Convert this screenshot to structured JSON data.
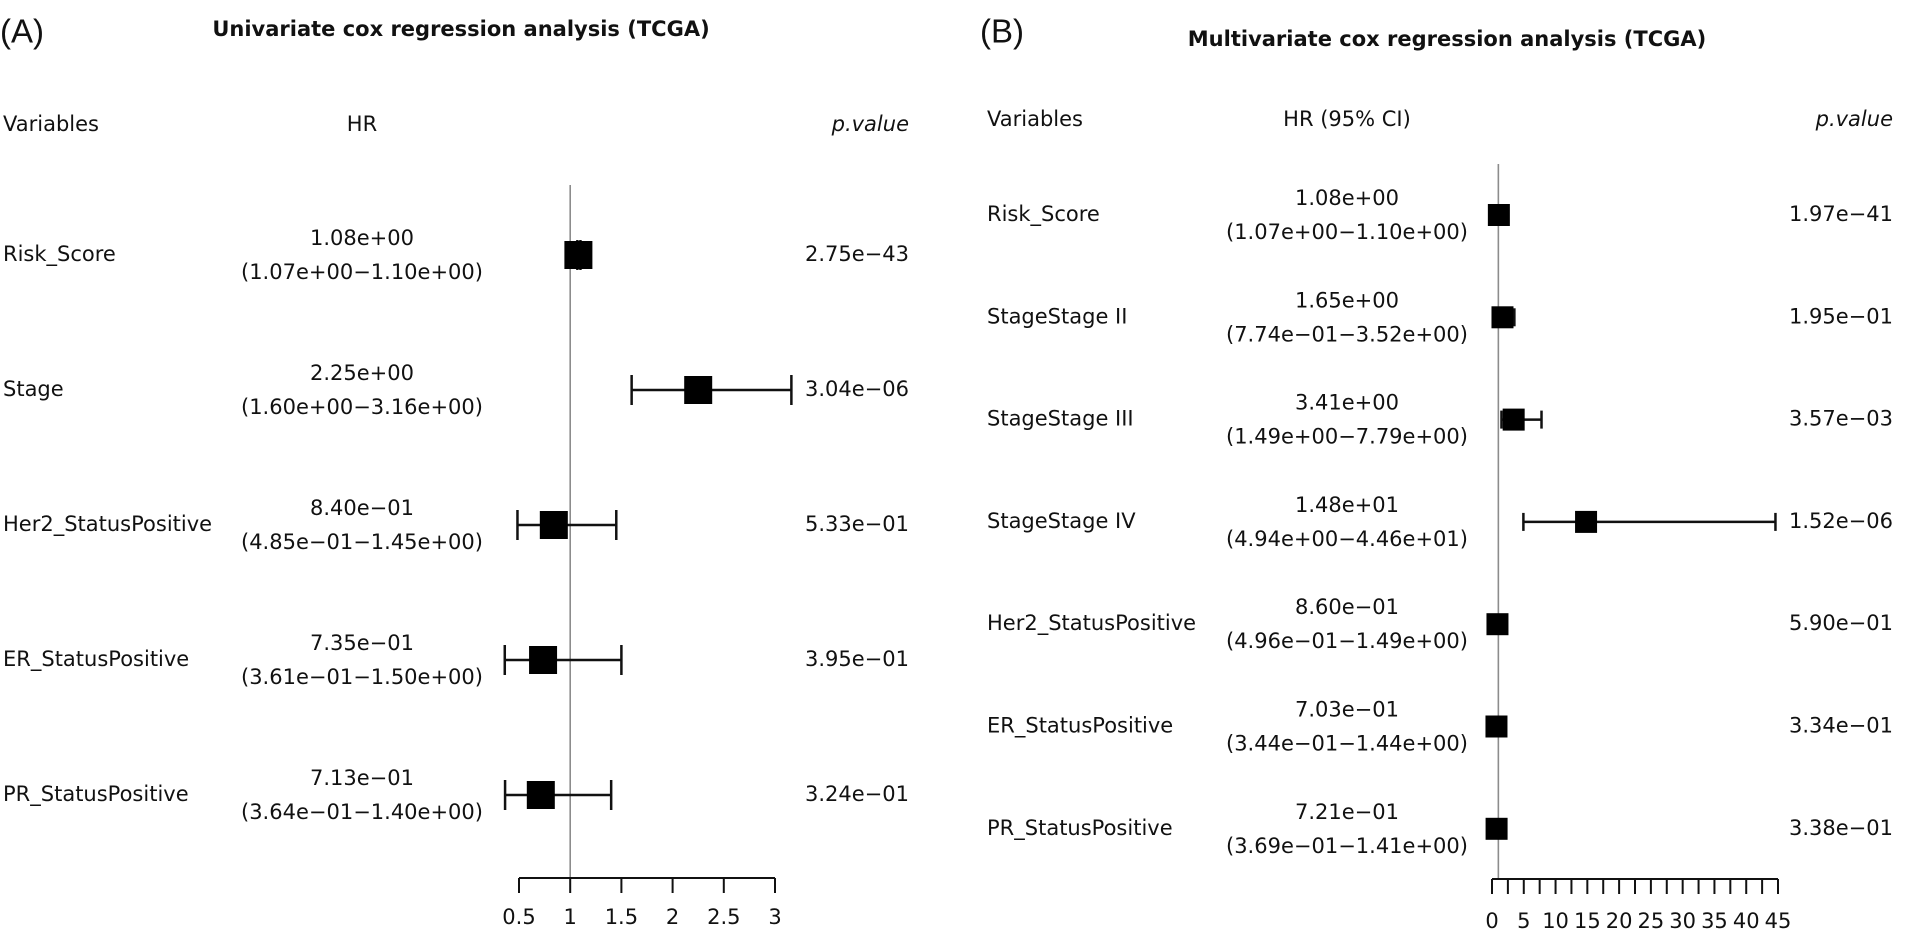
{
  "chart_data": [
    {
      "type": "forest",
      "panel_label": "(A)",
      "title": "Univariate cox regression analysis (TCGA)",
      "headers": {
        "variables": "Variables",
        "hr": "HR",
        "pvalue": "p.value"
      },
      "xlim": [
        0.5,
        3
      ],
      "xticks": [
        0.5,
        1,
        1.5,
        2,
        2.5,
        3
      ],
      "xtick_labels": [
        "0.5",
        "1",
        "1.5",
        "2",
        "2.5",
        "3"
      ],
      "minor_step": 0.5,
      "reference": 1,
      "rows": [
        {
          "variable": "Risk_Score",
          "hr": 1.08,
          "lo": 1.07,
          "hi": 1.1,
          "hr_text": "1.08e+00",
          "ci_text": "(1.07e+00−1.10e+00)",
          "p_text": "2.75e−43"
        },
        {
          "variable": "Stage",
          "hr": 2.25,
          "lo": 1.6,
          "hi": 3.16,
          "hr_text": "2.25e+00",
          "ci_text": "(1.60e+00−3.16e+00)",
          "p_text": "3.04e−06"
        },
        {
          "variable": "Her2_StatusPositive",
          "hr": 0.84,
          "lo": 0.485,
          "hi": 1.45,
          "hr_text": "8.40e−01",
          "ci_text": "(4.85e−01−1.45e+00)",
          "p_text": "5.33e−01"
        },
        {
          "variable": "ER_StatusPositive",
          "hr": 0.735,
          "lo": 0.361,
          "hi": 1.5,
          "hr_text": "7.35e−01",
          "ci_text": "(3.61e−01−1.50e+00)",
          "p_text": "3.95e−01"
        },
        {
          "variable": "PR_StatusPositive",
          "hr": 0.713,
          "lo": 0.364,
          "hi": 1.4,
          "hr_text": "7.13e−01",
          "ci_text": "(3.64e−01−1.40e+00)",
          "p_text": "3.24e−01"
        }
      ]
    },
    {
      "type": "forest",
      "panel_label": "(B)",
      "title": "Multivariate cox regression analysis (TCGA)",
      "headers": {
        "variables": "Variables",
        "hr": "HR (95% CI)",
        "pvalue": "p.value"
      },
      "xlim": [
        0,
        45
      ],
      "xticks": [
        0,
        5,
        10,
        15,
        20,
        25,
        30,
        35,
        40,
        45
      ],
      "xtick_labels": [
        "0",
        "5",
        "10",
        "15",
        "20",
        "25",
        "30",
        "35",
        "40",
        "45"
      ],
      "minor_step": 2.5,
      "reference": 1,
      "rows": [
        {
          "variable": "Risk_Score",
          "hr": 1.08,
          "lo": 1.07,
          "hi": 1.1,
          "hr_text": "1.08e+00",
          "ci_text": "(1.07e+00−1.10e+00)",
          "p_text": "1.97e−41"
        },
        {
          "variable": "StageStage II",
          "hr": 1.65,
          "lo": 0.774,
          "hi": 3.52,
          "hr_text": "1.65e+00",
          "ci_text": "(7.74e−01−3.52e+00)",
          "p_text": "1.95e−01"
        },
        {
          "variable": "StageStage III",
          "hr": 3.41,
          "lo": 1.49,
          "hi": 7.79,
          "hr_text": "3.41e+00",
          "ci_text": "(1.49e+00−7.79e+00)",
          "p_text": "3.57e−03"
        },
        {
          "variable": "StageStage IV",
          "hr": 14.8,
          "lo": 4.94,
          "hi": 44.6,
          "hr_text": "1.48e+01",
          "ci_text": "(4.94e+00−4.46e+01)",
          "p_text": "1.52e−06"
        },
        {
          "variable": "Her2_StatusPositive",
          "hr": 0.86,
          "lo": 0.496,
          "hi": 1.49,
          "hr_text": "8.60e−01",
          "ci_text": "(4.96e−01−1.49e+00)",
          "p_text": "5.90e−01"
        },
        {
          "variable": "ER_StatusPositive",
          "hr": 0.703,
          "lo": 0.344,
          "hi": 1.44,
          "hr_text": "7.03e−01",
          "ci_text": "(3.44e−01−1.44e+00)",
          "p_text": "3.34e−01"
        },
        {
          "variable": "PR_StatusPositive",
          "hr": 0.721,
          "lo": 0.369,
          "hi": 1.41,
          "hr_text": "7.21e−01",
          "ci_text": "(3.69e−01−1.41e+00)",
          "p_text": "3.38e−01"
        }
      ]
    }
  ]
}
